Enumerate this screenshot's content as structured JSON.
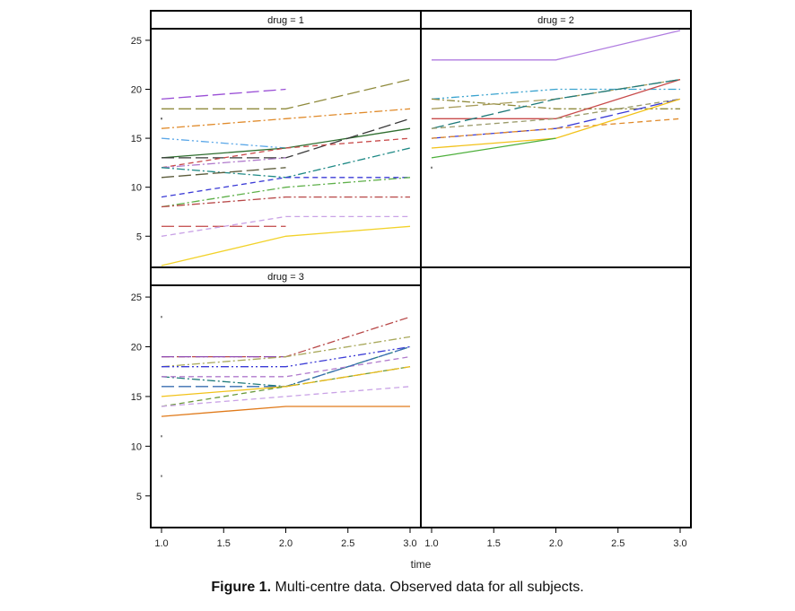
{
  "caption": {
    "label": "Figure 1.",
    "text": "Multi-centre data. Observed data for all subjects."
  },
  "chart_data": {
    "type": "line",
    "title": "",
    "xlabel": "time",
    "ylabel": "",
    "xlim": [
      1.0,
      3.0
    ],
    "ylim": [
      2,
      26
    ],
    "x_ticks": [
      1.0,
      1.5,
      2.0,
      2.5,
      3.0
    ],
    "x_tick_labels": [
      "1.0",
      "1.5",
      "2.0",
      "2.5",
      "3.0"
    ],
    "y_ticks": [
      5,
      10,
      15,
      20,
      25
    ],
    "y_tick_labels": [
      "5",
      "10",
      "15",
      "20",
      "25"
    ],
    "panels": [
      {
        "name": "drug = 1",
        "series": [
          {
            "color": "#9a4fd6",
            "dash": "long-dash",
            "x": [
              1,
              2
            ],
            "y": [
              19,
              20
            ]
          },
          {
            "color": "#8f8a3c",
            "dash": "long-dash",
            "x": [
              1,
              2,
              3
            ],
            "y": [
              18,
              18,
              21
            ]
          },
          {
            "color": "#e08a2a",
            "dash": "dash-dot",
            "x": [
              1,
              2,
              3
            ],
            "y": [
              16,
              17,
              18
            ]
          },
          {
            "color": "#5aa7e8",
            "dash": "dash-dot-dot",
            "x": [
              1,
              2
            ],
            "y": [
              15,
              14
            ]
          },
          {
            "color": "#333333",
            "dash": "dot",
            "x": [
              1
            ],
            "y": [
              17
            ]
          },
          {
            "color": "#2f6e2f",
            "dash": "solid",
            "x": [
              1,
              2,
              3
            ],
            "y": [
              13,
              14,
              16
            ]
          },
          {
            "color": "#3a3a3a",
            "dash": "long-dash",
            "x": [
              1,
              2,
              3
            ],
            "y": [
              13,
              13,
              17
            ]
          },
          {
            "color": "#c84b4b",
            "dash": "dash",
            "x": [
              1,
              2,
              3
            ],
            "y": [
              12,
              14,
              15
            ]
          },
          {
            "color": "#b07acc",
            "dash": "dash-dot",
            "x": [
              1,
              2
            ],
            "y": [
              12,
              13
            ]
          },
          {
            "color": "#1f8a86",
            "dash": "dash-dot",
            "x": [
              1,
              2,
              3
            ],
            "y": [
              12,
              11,
              14
            ]
          },
          {
            "color": "#5b5b3a",
            "dash": "long-dash",
            "x": [
              1,
              2
            ],
            "y": [
              11,
              12
            ]
          },
          {
            "color": "#3b3bd6",
            "dash": "dash",
            "x": [
              1,
              2,
              3
            ],
            "y": [
              9,
              11,
              11
            ]
          },
          {
            "color": "#5fb04a",
            "dash": "dash-dot",
            "x": [
              1,
              2,
              3
            ],
            "y": [
              8,
              10,
              11
            ]
          },
          {
            "color": "#b84848",
            "dash": "dash-dot",
            "x": [
              1,
              2,
              3
            ],
            "y": [
              8,
              9,
              9
            ]
          },
          {
            "color": "#c85a5a",
            "dash": "long-dash",
            "x": [
              1,
              2
            ],
            "y": [
              6,
              6
            ]
          },
          {
            "color": "#c9a2e6",
            "dash": "dash",
            "x": [
              1,
              2,
              3
            ],
            "y": [
              5,
              7,
              7
            ]
          },
          {
            "color": "#f2d22a",
            "dash": "solid",
            "x": [
              1,
              2,
              3
            ],
            "y": [
              2,
              5,
              6
            ]
          }
        ]
      },
      {
        "name": "drug = 2",
        "series": [
          {
            "color": "#b07ce0",
            "dash": "solid",
            "x": [
              1,
              2,
              3
            ],
            "y": [
              23,
              23,
              26
            ]
          },
          {
            "color": "#3aa3cf",
            "dash": "dash-dot-dot",
            "x": [
              1,
              2,
              3
            ],
            "y": [
              19,
              20,
              20
            ]
          },
          {
            "color": "#8f8a3c",
            "dash": "dash-dot",
            "x": [
              1,
              2,
              3
            ],
            "y": [
              19,
              18,
              18
            ]
          },
          {
            "color": "#a89c5a",
            "dash": "long-dash",
            "x": [
              1,
              2,
              3
            ],
            "y": [
              18,
              19,
              21
            ]
          },
          {
            "color": "#c84b4b",
            "dash": "solid",
            "x": [
              1,
              2,
              3
            ],
            "y": [
              17,
              17,
              21
            ]
          },
          {
            "color": "#1f7a7a",
            "dash": "long-dash",
            "x": [
              1,
              2,
              3
            ],
            "y": [
              16,
              19,
              21
            ]
          },
          {
            "color": "#9a9a6a",
            "dash": "dash",
            "x": [
              1,
              2,
              3
            ],
            "y": [
              16,
              17,
              19
            ]
          },
          {
            "color": "#3b3bd6",
            "dash": "long-dash",
            "x": [
              1,
              2,
              3
            ],
            "y": [
              15,
              16,
              19
            ]
          },
          {
            "color": "#e08a2a",
            "dash": "dash",
            "x": [
              1,
              2,
              3
            ],
            "y": [
              15,
              16,
              17
            ]
          },
          {
            "color": "#f2c21a",
            "dash": "solid",
            "x": [
              1,
              2,
              3
            ],
            "y": [
              14,
              15,
              19
            ]
          },
          {
            "color": "#4caf3a",
            "dash": "solid",
            "x": [
              1,
              2
            ],
            "y": [
              13,
              15
            ]
          },
          {
            "color": "#444444",
            "dash": "dot",
            "x": [
              1
            ],
            "y": [
              12
            ]
          }
        ]
      },
      {
        "name": "drug = 3",
        "series": [
          {
            "color": "#555555",
            "dash": "dot",
            "x": [
              1
            ],
            "y": [
              23
            ]
          },
          {
            "color": "#b84848",
            "dash": "dash-dot",
            "x": [
              1,
              2,
              3
            ],
            "y": [
              19,
              19,
              23
            ]
          },
          {
            "color": "#8f4ab0",
            "dash": "long-dash",
            "x": [
              1,
              2
            ],
            "y": [
              19,
              19
            ]
          },
          {
            "color": "#a8a85a",
            "dash": "dash-dot",
            "x": [
              1,
              2,
              3
            ],
            "y": [
              18,
              19,
              21
            ]
          },
          {
            "color": "#3b3bd6",
            "dash": "dash-dot-dot",
            "x": [
              1,
              2,
              3
            ],
            "y": [
              18,
              18,
              20
            ]
          },
          {
            "color": "#1f7a7a",
            "dash": "dash-dot",
            "x": [
              1,
              2,
              3
            ],
            "y": [
              17,
              16,
              20
            ]
          },
          {
            "color": "#b07acc",
            "dash": "dash",
            "x": [
              1,
              2,
              3
            ],
            "y": [
              17,
              17,
              19
            ]
          },
          {
            "color": "#3a6fb0",
            "dash": "long-dash",
            "x": [
              1,
              2,
              3
            ],
            "y": [
              16,
              16,
              20
            ]
          },
          {
            "color": "#f2c21a",
            "dash": "solid",
            "x": [
              1,
              2
            ],
            "y": [
              15,
              16
            ]
          },
          {
            "color": "#6a9a3a",
            "dash": "dash",
            "x": [
              1,
              2,
              3
            ],
            "y": [
              14,
              16,
              18
            ]
          },
          {
            "color": "#c9a2e6",
            "dash": "dash",
            "x": [
              1,
              2,
              3
            ],
            "y": [
              14,
              15,
              16
            ]
          },
          {
            "color": "#e6b91a",
            "dash": "long-dash",
            "x": [
              2,
              3
            ],
            "y": [
              16,
              18
            ]
          },
          {
            "color": "#e07a1a",
            "dash": "solid",
            "x": [
              1,
              2,
              3
            ],
            "y": [
              13,
              14,
              14
            ]
          },
          {
            "color": "#555555",
            "dash": "dot",
            "x": [
              1
            ],
            "y": [
              11
            ]
          },
          {
            "color": "#555555",
            "dash": "dot",
            "x": [
              1
            ],
            "y": [
              7
            ]
          }
        ]
      },
      {
        "name": "",
        "series": []
      }
    ]
  }
}
